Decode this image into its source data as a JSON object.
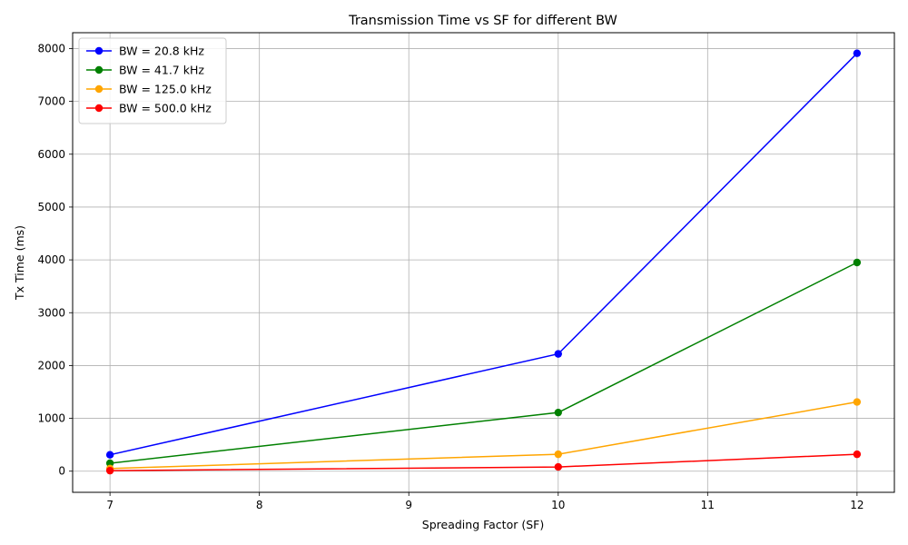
{
  "chart_data": {
    "type": "line",
    "title": "Transmission Time vs SF for different BW",
    "xlabel": "Spreading Factor (SF)",
    "ylabel": "Tx Time (ms)",
    "x": [
      7,
      10,
      12
    ],
    "xlim": [
      6.75,
      12.25
    ],
    "ylim": [
      -400,
      8300
    ],
    "xticks": [
      7,
      8,
      9,
      10,
      11,
      12
    ],
    "yticks": [
      0,
      1000,
      2000,
      3000,
      4000,
      5000,
      6000,
      7000,
      8000
    ],
    "grid": true,
    "legend_position": "top-left",
    "series": [
      {
        "name": "BW = 20.8 kHz",
        "color": "#0000ff",
        "values": [
          310,
          2220,
          7910
        ]
      },
      {
        "name": "BW = 41.7 kHz",
        "color": "#008000",
        "values": [
          150,
          1110,
          3950
        ]
      },
      {
        "name": "BW = 125.0 kHz",
        "color": "#ffa500",
        "values": [
          50,
          320,
          1310
        ]
      },
      {
        "name": "BW = 500.0 kHz",
        "color": "#ff0000",
        "values": [
          10,
          80,
          320
        ]
      }
    ]
  }
}
